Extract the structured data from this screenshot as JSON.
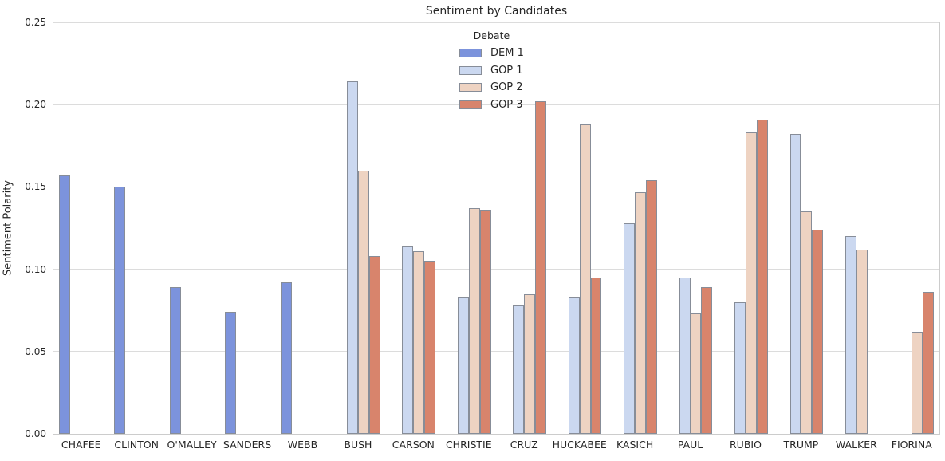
{
  "chart_data": {
    "type": "bar",
    "title": "Sentiment by Candidates",
    "xlabel": "",
    "ylabel": "Sentiment Polarity",
    "legend_title": "Debate",
    "legend_position": "upper center",
    "grid": true,
    "ylim": [
      0,
      0.25
    ],
    "yticks": [
      0.0,
      0.05,
      0.1,
      0.15,
      0.2,
      0.25
    ],
    "ytick_labels": [
      "0.00",
      "0.05",
      "0.10",
      "0.15",
      "0.20",
      "0.25"
    ],
    "categories": [
      "CHAFEE",
      "CLINTON",
      "O'MALLEY",
      "SANDERS",
      "WEBB",
      "BUSH",
      "CARSON",
      "CHRISTIE",
      "CRUZ",
      "HUCKABEE",
      "KASICH",
      "PAUL",
      "RUBIO",
      "TRUMP",
      "WALKER",
      "FIORINA"
    ],
    "series": [
      {
        "name": "DEM 1",
        "color": "#7c93dc",
        "values": [
          0.157,
          0.15,
          0.089,
          0.074,
          0.092,
          null,
          null,
          null,
          null,
          null,
          null,
          null,
          null,
          null,
          null,
          null
        ]
      },
      {
        "name": "GOP 1",
        "color": "#cbd8f0",
        "values": [
          null,
          null,
          null,
          null,
          null,
          0.214,
          0.114,
          0.083,
          0.078,
          0.083,
          0.128,
          0.095,
          0.08,
          0.182,
          0.12,
          null
        ]
      },
      {
        "name": "GOP 2",
        "color": "#eed3c2",
        "values": [
          null,
          null,
          null,
          null,
          null,
          0.16,
          0.111,
          0.137,
          0.085,
          0.188,
          0.147,
          0.073,
          0.183,
          0.135,
          0.112,
          0.062
        ]
      },
      {
        "name": "GOP 3",
        "color": "#d8846c",
        "values": [
          null,
          null,
          null,
          null,
          null,
          0.108,
          0.105,
          0.136,
          0.202,
          0.095,
          0.154,
          0.089,
          0.191,
          0.124,
          null,
          0.086
        ]
      }
    ]
  },
  "style": {
    "grid_color": "#dcdcdc",
    "spine_color": "#cccccc",
    "bar_edge_color": "#878d98",
    "text_color": "#262626",
    "background": "#ffffff"
  }
}
